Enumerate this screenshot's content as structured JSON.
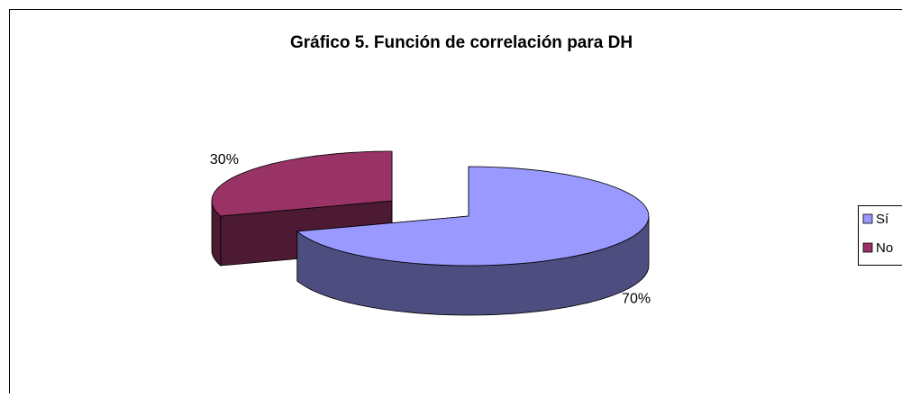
{
  "chart_data": {
    "type": "pie",
    "title": "Gráfico 5. Función de correlación para DH",
    "categories": [
      "Sí",
      "No"
    ],
    "values": [
      70,
      30
    ],
    "value_labels": [
      "70%",
      "30%"
    ],
    "colors": [
      "#9999ff",
      "#993366"
    ],
    "side_colors": [
      "#4d4d80",
      "#4d1a33"
    ],
    "legend": "right",
    "three_d": true,
    "exploded": true
  }
}
